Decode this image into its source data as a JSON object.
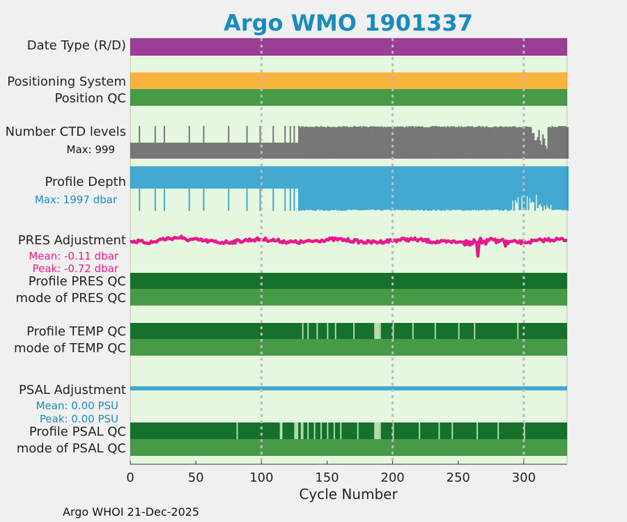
{
  "chart_data": {
    "type": "bar",
    "title": "Argo WMO 1901337",
    "xlabel": "Cycle Number",
    "xlim": [
      0,
      333
    ],
    "x_ticks": [
      0,
      50,
      100,
      150,
      200,
      250,
      300
    ],
    "x_tick_labels": [
      "0",
      "50",
      "100",
      "150",
      "200",
      "250",
      "300"
    ],
    "grid_lines_x": [
      100,
      200,
      300
    ],
    "footer": "Argo WHOI 21-Dec-2025",
    "rows": {
      "date_type": {
        "label": "Date Type (R/D)",
        "color": "#9c3d96"
      },
      "positioning": {
        "label": "Positioning System",
        "color": "#fbb33f"
      },
      "position_qc": {
        "label": "Position QC",
        "color": "#479b47"
      },
      "ctd_levels": {
        "label": "Number CTD levels",
        "sublabel": "Max: 999",
        "color": "#777777",
        "dropout_cycles": [
          7,
          19,
          26,
          45,
          56,
          75,
          89,
          99,
          109,
          118,
          122,
          125
        ],
        "dense_from": 128,
        "low_range": [
          306,
          317
        ]
      },
      "profile_depth": {
        "label": "Profile Depth",
        "sublabel": "Max: 1997 dbar",
        "color": "#43a9d1",
        "dropout_cycles": [
          7,
          19,
          26,
          45,
          56,
          75,
          89,
          99,
          109,
          118,
          122,
          125
        ],
        "dense_from": 128,
        "deep_range": [
          310,
          320
        ]
      },
      "pres_adjustment": {
        "label": "PRES Adjustment",
        "mean": "Mean: -0.11 dbar",
        "peak": "Peak: -0.72 dbar",
        "color": "#e8198c",
        "mean_value": -0.11,
        "peak_value": -0.72
      },
      "pres_qc": {
        "label": "Profile PRES QC",
        "mode_label": "mode of PRES QC",
        "dark": "#15712b",
        "mid": "#479b47",
        "light": "#b9dfb0"
      },
      "temp_qc": {
        "label": "Profile TEMP QC",
        "mode_label": "mode of TEMP QC",
        "light_cycles": [
          131,
          135,
          142,
          150,
          156,
          170,
          186,
          187,
          188,
          189,
          190,
          200,
          215,
          232,
          250,
          262,
          295
        ]
      },
      "psal_adjustment": {
        "label": "PSAL Adjustment",
        "mean": "Mean: 0.00 PSU",
        "peak": "Peak: 0.00 PSU",
        "color": "#43a9d1",
        "mean_value": 0.0,
        "peak_value": 0.0
      },
      "psal_qc": {
        "label": "Profile PSAL QC",
        "mode_label": "mode of PSAL QC",
        "light_cycles": [
          81,
          114,
          115,
          125,
          126,
          127,
          130,
          131,
          135,
          140,
          145,
          150,
          155,
          160,
          173,
          186,
          187,
          188,
          189,
          190,
          200,
          220,
          235,
          245,
          264,
          280,
          300
        ]
      }
    }
  }
}
